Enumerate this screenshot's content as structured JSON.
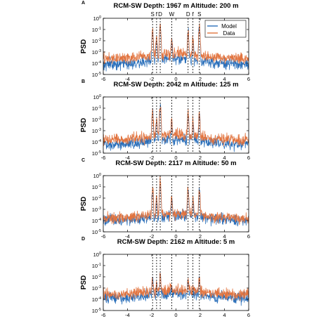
{
  "figure": {
    "background": "#ffffff",
    "colors": {
      "model": "#2a6fba",
      "data": "#e2743f",
      "frame": "#000000",
      "marker_line": "#000000"
    }
  },
  "chart_data": [
    {
      "type": "line",
      "panel_letter": "A",
      "title": "RCM-SW Depth: 1967 m Altitude: 200 m",
      "ylabel": "PSD",
      "xlim": [
        -6,
        6
      ],
      "xticks": [
        "-6",
        "-4",
        "-2",
        "0",
        "2",
        "4",
        "6"
      ],
      "ylim_exp": [
        -5,
        0
      ],
      "yticks": [
        "10^0",
        "10^-1",
        "10^-2",
        "10^-3",
        "10^-4",
        "10^-5"
      ],
      "y_scale": "log",
      "legend": {
        "position": "top-right",
        "entries": [
          "Model",
          "Data"
        ]
      },
      "markers": {
        "positions": [
          -1.93,
          -1.6,
          -1.3,
          -0.35,
          1.0,
          1.4,
          1.93
        ],
        "labels": [
          "S",
          "f",
          "D",
          "W",
          "D",
          "f",
          "S"
        ]
      },
      "series": [
        {
          "name": "Model",
          "color": "#2a6fba",
          "baseline_exp": -4.1,
          "peaks": [
            [
              -1.93,
              -1.2
            ],
            [
              -1.6,
              -2.0
            ],
            [
              -1.3,
              -0.8
            ],
            [
              -0.35,
              -2.0
            ],
            [
              1.0,
              -1.3
            ],
            [
              1.4,
              -2.0
            ],
            [
              1.93,
              -0.9
            ]
          ]
        },
        {
          "name": "Data",
          "color": "#e2743f",
          "baseline_exp": -3.6,
          "peaks": [
            [
              -1.93,
              -1.1
            ],
            [
              -1.6,
              -1.8
            ],
            [
              -1.3,
              -0.6
            ],
            [
              -0.35,
              -1.8
            ],
            [
              1.0,
              -1.2
            ],
            [
              1.4,
              -1.9
            ],
            [
              1.93,
              -0.8
            ]
          ]
        }
      ]
    },
    {
      "type": "line",
      "panel_letter": "B",
      "title": "RCM-SW Depth: 2042 m Altitude: 125 m",
      "ylabel": "PSD",
      "xlim": [
        -6,
        6
      ],
      "xticks": [
        "-6",
        "-4",
        "-2",
        "0",
        "2",
        "4",
        "6"
      ],
      "ylim_exp": [
        -5,
        0
      ],
      "yticks": [
        "10^0",
        "10^-1",
        "10^-2",
        "10^-3",
        "10^-4",
        "10^-5"
      ],
      "y_scale": "log",
      "markers": {
        "positions": [
          -1.93,
          -1.6,
          -1.3,
          -0.35,
          1.0,
          1.4,
          1.93
        ],
        "labels": []
      },
      "series": [
        {
          "name": "Model",
          "color": "#2a6fba",
          "baseline_exp": -4.2,
          "peaks": [
            [
              -1.93,
              -1.3
            ],
            [
              -1.6,
              -2.2
            ],
            [
              -1.3,
              -0.9
            ],
            [
              -0.35,
              -2.3
            ],
            [
              1.0,
              -1.5
            ],
            [
              1.4,
              -2.4
            ],
            [
              1.93,
              -1.7
            ]
          ]
        },
        {
          "name": "Data",
          "color": "#e2743f",
          "baseline_exp": -3.8,
          "peaks": [
            [
              -1.93,
              -1.2
            ],
            [
              -1.6,
              -2.0
            ],
            [
              -1.3,
              -0.7
            ],
            [
              -0.35,
              -2.1
            ],
            [
              1.0,
              -1.3
            ],
            [
              1.4,
              -2.2
            ],
            [
              1.93,
              -1.5
            ]
          ]
        }
      ]
    },
    {
      "type": "line",
      "panel_letter": "C",
      "title": "RCM-SW Depth: 2117 m Altitude: 50 m",
      "ylabel": "PSD",
      "xlim": [
        -6,
        6
      ],
      "xticks": [
        "-6",
        "-4",
        "-2",
        "0",
        "2",
        "4",
        "6"
      ],
      "ylim_exp": [
        -5,
        0
      ],
      "yticks": [
        "10^0",
        "10^-1",
        "10^-2",
        "10^-3",
        "10^-4",
        "10^-5"
      ],
      "y_scale": "log",
      "markers": {
        "positions": [
          -1.93,
          -1.6,
          -1.3,
          -0.35,
          1.0,
          1.4,
          1.93
        ],
        "labels": []
      },
      "series": [
        {
          "name": "Model",
          "color": "#2a6fba",
          "baseline_exp": -4.0,
          "peaks": [
            [
              -1.93,
              -1.3
            ],
            [
              -1.6,
              -2.1
            ],
            [
              -1.3,
              -0.9
            ],
            [
              -0.35,
              -2.1
            ],
            [
              1.0,
              -1.4
            ],
            [
              1.4,
              -2.3
            ],
            [
              1.93,
              -1.5
            ]
          ]
        },
        {
          "name": "Data",
          "color": "#e2743f",
          "baseline_exp": -3.8,
          "peaks": [
            [
              -1.93,
              -1.2
            ],
            [
              -1.6,
              -1.9
            ],
            [
              -1.3,
              -0.6
            ],
            [
              -0.35,
              -1.9
            ],
            [
              1.0,
              -1.3
            ],
            [
              1.4,
              -2.1
            ],
            [
              1.93,
              -1.3
            ]
          ]
        }
      ]
    },
    {
      "type": "line",
      "panel_letter": "D",
      "title": "RCM-SW Depth: 2162 m Altitude: 5 m",
      "ylabel": "PSD",
      "xlim": [
        -6,
        6
      ],
      "xticks": [
        "-6",
        "-4",
        "-2",
        "0",
        "2",
        "4",
        "6"
      ],
      "ylim_exp": [
        -5,
        0
      ],
      "yticks": [
        "10^0",
        "10^-1",
        "10^-2",
        "10^-3",
        "10^-4",
        "10^-5"
      ],
      "y_scale": "log",
      "markers": {
        "positions": [
          -1.93,
          -1.6,
          -1.3,
          -0.35,
          1.0,
          1.4,
          1.93
        ],
        "labels": []
      },
      "series": [
        {
          "name": "Model",
          "color": "#2a6fba",
          "baseline_exp": -3.9,
          "peaks": [
            [
              -1.93,
              -2.3
            ],
            [
              -1.6,
              -2.8
            ],
            [
              -1.3,
              -1.9
            ],
            [
              -0.35,
              -2.9
            ],
            [
              1.0,
              -2.2
            ],
            [
              1.4,
              -3.0
            ],
            [
              1.93,
              -2.3
            ]
          ]
        },
        {
          "name": "Data",
          "color": "#e2743f",
          "baseline_exp": -3.6,
          "peaks": [
            [
              -1.93,
              -2.2
            ],
            [
              -1.6,
              -2.6
            ],
            [
              -1.3,
              -1.8
            ],
            [
              -0.35,
              -2.7
            ],
            [
              1.0,
              -2.1
            ],
            [
              1.4,
              -2.8
            ],
            [
              1.93,
              -2.2
            ]
          ]
        }
      ]
    }
  ]
}
